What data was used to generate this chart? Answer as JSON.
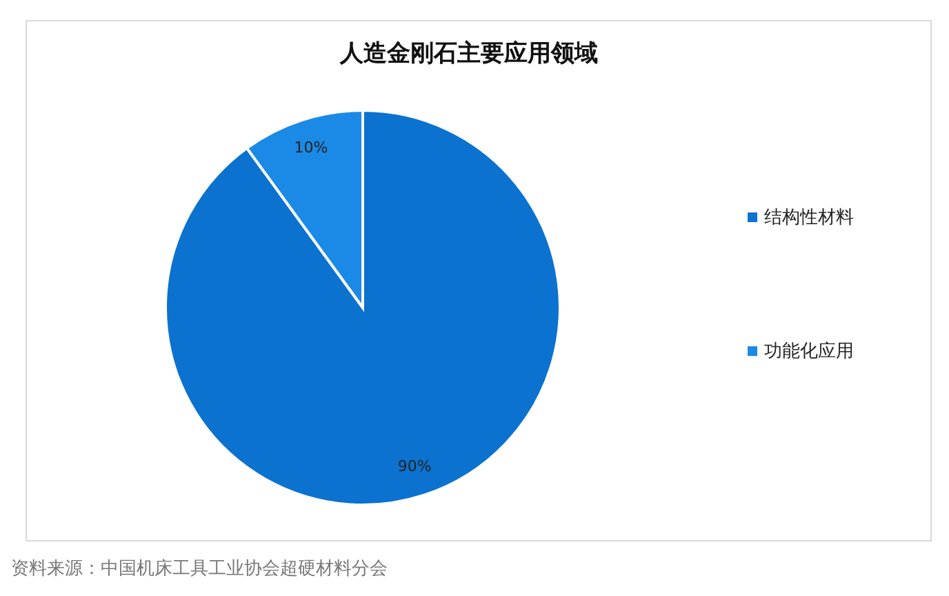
{
  "chart_data": {
    "type": "pie",
    "title": "人造金刚石主要应用领域",
    "categories": [
      "结构性材料",
      "功能化应用"
    ],
    "values": [
      90,
      10
    ],
    "colors": [
      "#0b72cf",
      "#1a8ae6"
    ],
    "value_labels": [
      "90%",
      "10%"
    ],
    "legend": "right",
    "annotations": [
      "资料来源：中国机床工具工业协会超硬材料分会"
    ]
  }
}
